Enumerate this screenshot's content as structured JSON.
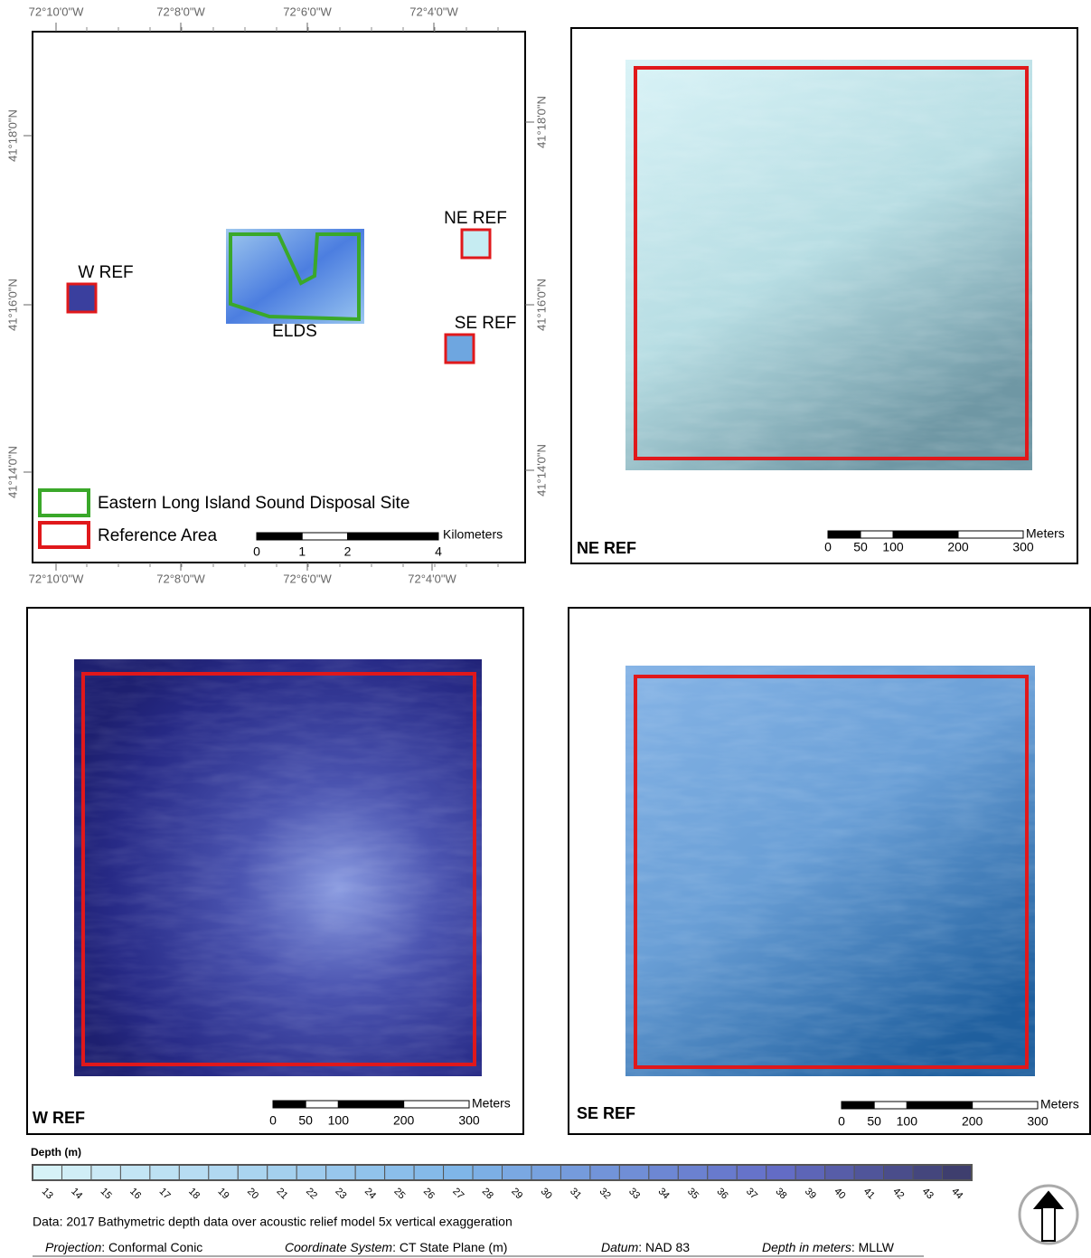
{
  "overview": {
    "lon_labels": [
      "72°10'0\"W",
      "72°8'0\"W",
      "72°6'0\"W",
      "72°4'0\"W"
    ],
    "lat_labels": [
      "41°18'0\"N",
      "41°16'0\"N",
      "41°14'0\"N"
    ],
    "sites": [
      "W REF",
      "NE REF",
      "SE REF",
      "ELDS"
    ],
    "legend": [
      "Eastern Long Island Sound Disposal Site",
      "Reference Area"
    ],
    "scale": {
      "unit": "Kilometers",
      "ticks": [
        0,
        1,
        2,
        4
      ]
    }
  },
  "panels": [
    {
      "label": "NE REF",
      "scale": {
        "unit": "Meters",
        "ticks": [
          0,
          50,
          100,
          200,
          300
        ]
      }
    },
    {
      "label": "W REF",
      "scale": {
        "unit": "Meters",
        "ticks": [
          0,
          50,
          100,
          200,
          300
        ]
      }
    },
    {
      "label": "SE REF",
      "scale": {
        "unit": "Meters",
        "ticks": [
          0,
          50,
          100,
          200,
          300
        ]
      }
    }
  ],
  "depth_legend": {
    "title": "Depth (m)",
    "classes": [
      13,
      14,
      15,
      16,
      17,
      18,
      19,
      20,
      21,
      22,
      23,
      24,
      25,
      26,
      27,
      28,
      29,
      30,
      31,
      32,
      33,
      34,
      35,
      36,
      37,
      38,
      39,
      40,
      41,
      42,
      43,
      44
    ]
  },
  "footer": {
    "note": "Data: 2017 Bathymetric depth data over acoustic relief model 5x vertical exaggeration",
    "items": [
      {
        "label": "Projection",
        "value": ": Conformal Conic"
      },
      {
        "label": "Coordinate System",
        "value": ": CT State Plane (m)"
      },
      {
        "label": "Datum",
        "value": ": NAD 83"
      },
      {
        "label": "Depth in meters",
        "value": ": MLLW"
      }
    ]
  }
}
